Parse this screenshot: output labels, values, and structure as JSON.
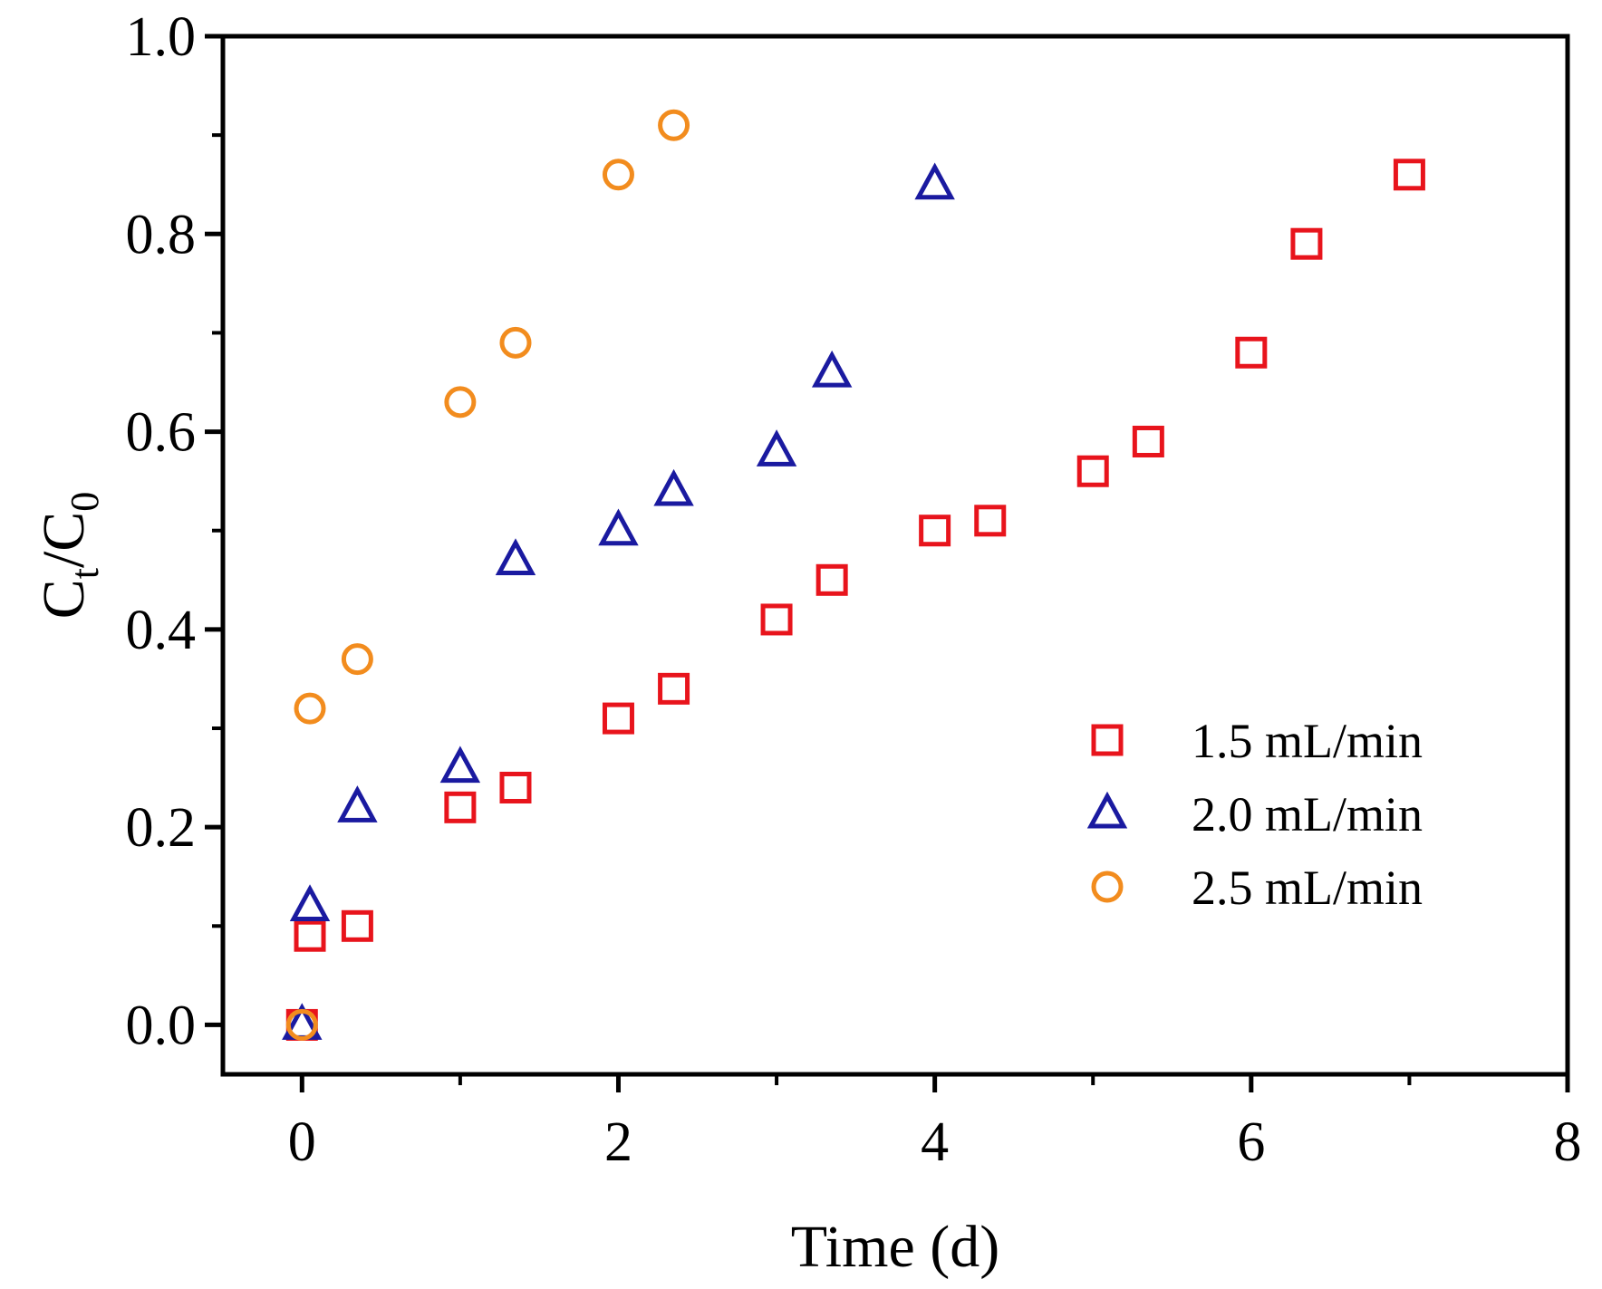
{
  "chart_data": {
    "type": "scatter",
    "xlabel": "Time (d)",
    "ylabel": {
      "main": "C",
      "sub1": "t",
      "slash": "/C",
      "sub2": "0"
    },
    "xlim": [
      -0.5,
      8
    ],
    "ylim": [
      -0.05,
      1.0
    ],
    "xticks": [
      "0",
      "2",
      "4",
      "6",
      "8"
    ],
    "xtick_values": [
      0,
      2,
      4,
      6,
      8
    ],
    "yticks": [
      "0.0",
      "0.2",
      "0.4",
      "0.6",
      "0.8",
      "1.0"
    ],
    "ytick_values": [
      0.0,
      0.2,
      0.4,
      0.6,
      0.8,
      1.0
    ],
    "legend_position": "right",
    "series": [
      {
        "name": "1.5 mL/min",
        "marker": "square",
        "color": "#e8141c",
        "points": [
          [
            0,
            0
          ],
          [
            0.05,
            0.09
          ],
          [
            0.35,
            0.1
          ],
          [
            1.0,
            0.22
          ],
          [
            1.35,
            0.24
          ],
          [
            2.0,
            0.31
          ],
          [
            2.35,
            0.34
          ],
          [
            3.0,
            0.41
          ],
          [
            3.35,
            0.45
          ],
          [
            4.0,
            0.5
          ],
          [
            4.35,
            0.51
          ],
          [
            5.0,
            0.56
          ],
          [
            5.35,
            0.59
          ],
          [
            6.0,
            0.68
          ],
          [
            6.35,
            0.79
          ],
          [
            7.0,
            0.86
          ]
        ]
      },
      {
        "name": "2.0 mL/min",
        "marker": "triangle",
        "color": "#1a1aa0",
        "points": [
          [
            0,
            0
          ],
          [
            0.05,
            0.12
          ],
          [
            0.35,
            0.22
          ],
          [
            1.0,
            0.26
          ],
          [
            1.35,
            0.47
          ],
          [
            2.0,
            0.5
          ],
          [
            2.35,
            0.54
          ],
          [
            3.0,
            0.58
          ],
          [
            3.35,
            0.66
          ],
          [
            4.0,
            0.85
          ]
        ]
      },
      {
        "name": "2.5 mL/min",
        "marker": "circle",
        "color": "#f28c1e",
        "points": [
          [
            0,
            0
          ],
          [
            0.05,
            0.32
          ],
          [
            0.35,
            0.37
          ],
          [
            1.0,
            0.63
          ],
          [
            1.35,
            0.69
          ],
          [
            2.0,
            0.86
          ],
          [
            2.35,
            0.91
          ]
        ]
      }
    ]
  }
}
